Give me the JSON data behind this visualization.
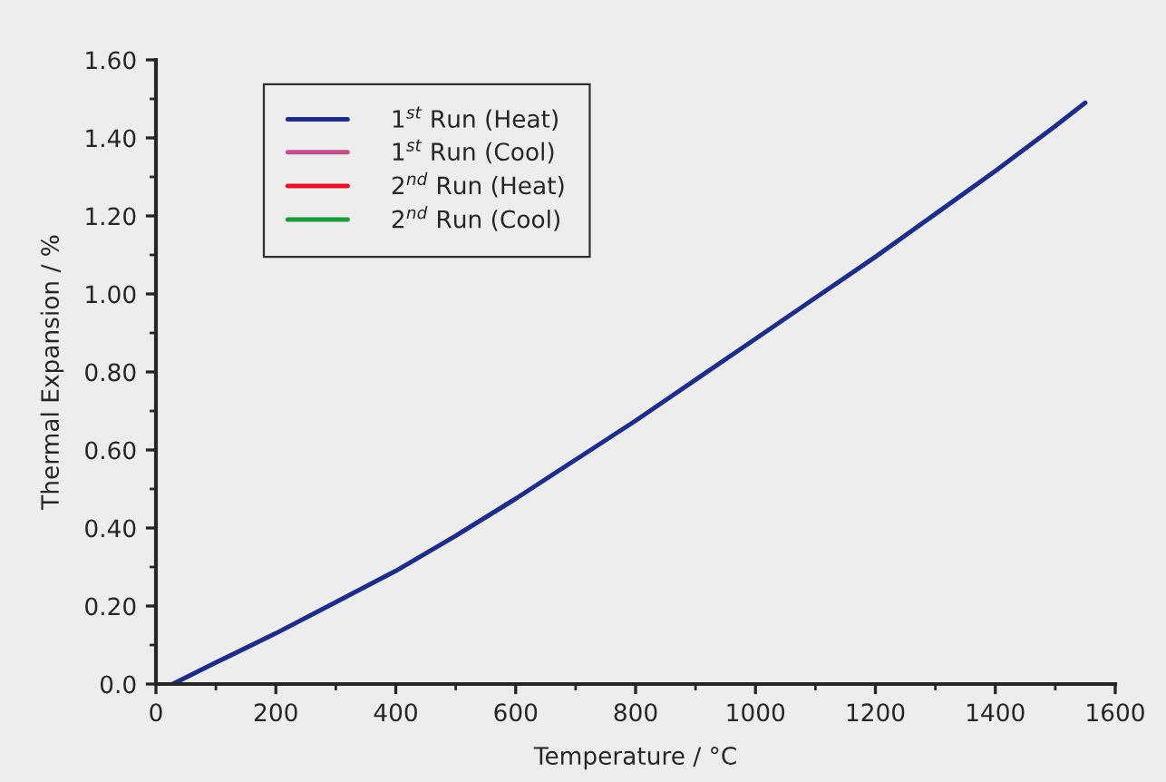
{
  "chart_data": {
    "type": "line",
    "xlabel": "Temperature / °C",
    "ylabel": "Thermal Expansion / %",
    "x": [
      28,
      100,
      200,
      300,
      400,
      500,
      600,
      700,
      800,
      900,
      1000,
      1100,
      1200,
      1300,
      1400,
      1500,
      1550
    ],
    "series": [
      {
        "name": "1$^{st}$ Run (Heat)",
        "color": "#1f2d8a",
        "values": [
          0,
          0.055,
          0.13,
          0.21,
          0.29,
          0.38,
          0.475,
          0.575,
          0.675,
          0.78,
          0.885,
          0.99,
          1.095,
          1.205,
          1.315,
          1.43,
          1.49
        ]
      },
      {
        "name": "1$^{st}$ Run (Cool)",
        "color": "#c0508a",
        "values": [
          null,
          null,
          null,
          null,
          null,
          null,
          null,
          null,
          null,
          null,
          null,
          null,
          null,
          null,
          null,
          null,
          null
        ]
      },
      {
        "name": "2$^{nd}$ Run (Heat)",
        "color": "#e8102a",
        "values": [
          null,
          null,
          null,
          null,
          null,
          null,
          null,
          null,
          null,
          null,
          null,
          null,
          null,
          null,
          null,
          null,
          null
        ]
      },
      {
        "name": "2$^{nd}$ Run (Cool)",
        "color": "#1a9a3a",
        "values": [
          null,
          null,
          null,
          null,
          null,
          null,
          null,
          null,
          null,
          null,
          null,
          null,
          null,
          null,
          null,
          null,
          null
        ]
      }
    ],
    "xlim": [
      0,
      1600
    ],
    "xticks": [
      0,
      200,
      400,
      600,
      800,
      1000,
      1200,
      1400,
      1600
    ],
    "ylim": [
      0,
      1.6
    ],
    "yticks": [
      {
        "value": 0,
        "label": "0.0"
      },
      {
        "value": 0.2,
        "label": "0.20"
      },
      {
        "value": 0.4,
        "label": "0.40"
      },
      {
        "value": 0.6,
        "label": "0.60"
      },
      {
        "value": 0.8,
        "label": "0.80"
      },
      {
        "value": 1.0,
        "label": "1.00"
      },
      {
        "value": 1.2,
        "label": "1.20"
      },
      {
        "value": 1.4,
        "label": "1.40"
      },
      {
        "value": 1.6,
        "label": "1.60"
      }
    ],
    "grid": false,
    "legend": "top left",
    "marker": "none",
    "line_style": "solid"
  }
}
